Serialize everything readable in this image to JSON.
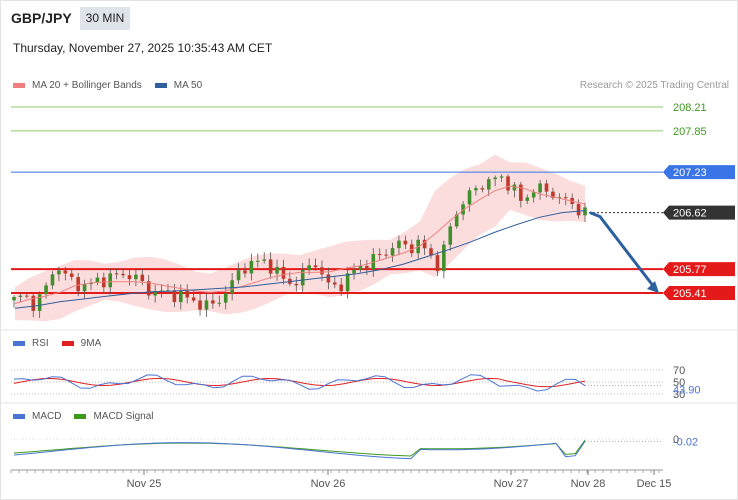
{
  "header": {
    "symbol": "GBP/JPY",
    "timeframe": "30 MIN",
    "datetime": "Thursday, November 27, 2025 10:35:43 AM CET",
    "credit": "Research © 2025 Trading Central"
  },
  "legends": {
    "price": [
      {
        "label": "MA 20 + Bollinger Bands",
        "color": "#f08080"
      },
      {
        "label": "MA 50",
        "color": "#2f5f9e"
      }
    ],
    "rsi": [
      {
        "label": "RSI",
        "color": "#4a74d4"
      },
      {
        "label": "9MA",
        "color": "#e02020"
      }
    ],
    "macd": [
      {
        "label": "MACD",
        "color": "#4a74d4"
      },
      {
        "label": "MACD Signal",
        "color": "#3c9a1c"
      }
    ]
  },
  "chart_data": {
    "type": "candlestick",
    "symbol": "GBP/JPY",
    "interval": "30 MIN",
    "x_ticks": [
      "Nov 25",
      "Nov 26",
      "Nov 27",
      "Nov 28",
      "Dec 15"
    ],
    "price_axis": {
      "ylim": [
        204.9,
        208.45
      ]
    },
    "levels": [
      {
        "value": 208.21,
        "label": "208.21",
        "kind": "target",
        "color": "#8fce6c"
      },
      {
        "value": 207.85,
        "label": "207.85",
        "kind": "target",
        "color": "#8fce6c"
      },
      {
        "value": 207.23,
        "label": "207.23",
        "kind": "pivot",
        "color": "#3a75e8"
      },
      {
        "value": 206.62,
        "label": "206.62",
        "kind": "last",
        "color": "#333333"
      },
      {
        "value": 205.77,
        "label": "205.77",
        "kind": "support",
        "color": "#e41a1a"
      },
      {
        "value": 205.41,
        "label": "205.41",
        "kind": "support",
        "color": "#e41a1a"
      }
    ],
    "projection": {
      "from": 206.62,
      "to": 205.41,
      "direction": "down",
      "color": "#2c5f9e"
    },
    "close_path": [
      205.3,
      205.38,
      205.22,
      205.45,
      205.85,
      205.65,
      205.55,
      205.5,
      205.6,
      205.62,
      205.68,
      205.7,
      205.6,
      205.45,
      205.42,
      205.4,
      205.38,
      205.3,
      205.25,
      205.2,
      205.35,
      205.55,
      205.8,
      205.85,
      205.9,
      205.78,
      205.6,
      205.55,
      205.72,
      205.9,
      205.55,
      205.5,
      205.6,
      205.8,
      205.85,
      205.95,
      206.05,
      206.15,
      206.1,
      206.15,
      206.0,
      205.8,
      206.4,
      206.75,
      206.9,
      207.05,
      207.1,
      207.15,
      207.0,
      206.75,
      207.0,
      206.95,
      206.9,
      206.8,
      206.72,
      206.62
    ],
    "ma20_path": [
      205.25,
      205.32,
      205.36,
      205.42,
      205.52,
      205.56,
      205.58,
      205.58,
      205.58,
      205.56,
      205.52,
      205.48,
      205.44,
      205.42,
      205.44,
      205.5,
      205.57,
      205.64,
      205.69,
      205.72,
      205.72,
      205.73,
      205.78,
      205.82,
      205.88,
      205.95,
      206.02,
      206.12,
      206.3,
      206.5,
      206.68,
      206.82,
      206.95,
      207.02,
      206.98,
      206.9,
      206.85,
      206.8,
      206.75
    ],
    "ma50_path": [
      205.18,
      205.22,
      205.28,
      205.32,
      205.36,
      205.4,
      205.43,
      205.44,
      205.46,
      205.48,
      205.5,
      205.54,
      205.58,
      205.62,
      205.66,
      205.7,
      205.76,
      205.84,
      205.95,
      206.06,
      206.18,
      206.32,
      206.44,
      206.55,
      206.62,
      206.65
    ],
    "rsi": {
      "ylim": [
        30,
        70
      ],
      "ticks": [
        70,
        50,
        30
      ],
      "last": 43.9,
      "last_label": "43.90"
    },
    "macd": {
      "ticks": [
        0
      ],
      "last": -0.02,
      "last_label": "-0.02"
    }
  }
}
